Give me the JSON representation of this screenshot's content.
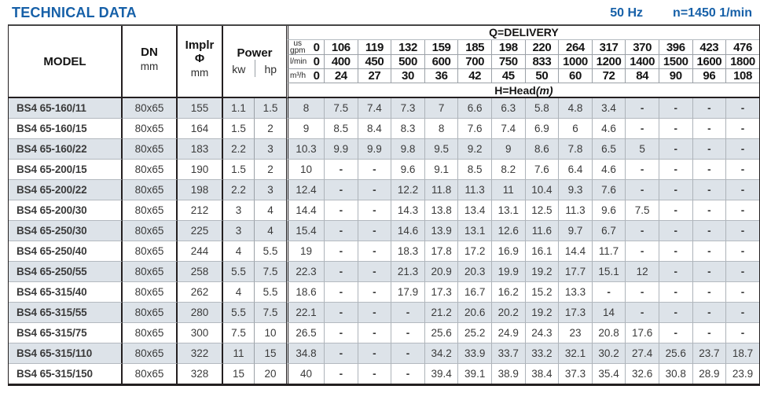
{
  "header": {
    "title": "TECHNICAL DATA",
    "frequency": "50 Hz",
    "speed": "n=1450 1/min"
  },
  "table": {
    "columns": {
      "model": "MODEL",
      "dn": "DN",
      "dn_unit": "mm",
      "implr_line1": "Implr",
      "implr_line2": "Φ",
      "implr_unit": "mm",
      "power": "Power",
      "kw": "kw",
      "hp": "hp"
    },
    "delivery_title": "Q=DELIVERY",
    "head_title": "H=Head",
    "head_unit": "(m)",
    "flow_rows": [
      {
        "unit_lines": [
          "us",
          "gpm"
        ],
        "values": [
          "0",
          "106",
          "119",
          "132",
          "159",
          "185",
          "198",
          "220",
          "264",
          "317",
          "370",
          "396",
          "423",
          "476"
        ]
      },
      {
        "unit_lines": [
          "l/min"
        ],
        "values": [
          "0",
          "400",
          "450",
          "500",
          "600",
          "700",
          "750",
          "833",
          "1000",
          "1200",
          "1400",
          "1500",
          "1600",
          "1800"
        ]
      },
      {
        "unit_lines": [
          "m³/h"
        ],
        "values": [
          "0",
          "24",
          "27",
          "30",
          "36",
          "42",
          "45",
          "50",
          "60",
          "72",
          "84",
          "90",
          "96",
          "108"
        ]
      }
    ],
    "rows": [
      {
        "model": "BS4 65-160/11",
        "dn": "80x65",
        "implr": "155",
        "kw": "1.1",
        "hp": "1.5",
        "head": [
          "8",
          "7.5",
          "7.4",
          "7.3",
          "7",
          "6.6",
          "6.3",
          "5.8",
          "4.8",
          "3.4",
          "-",
          "-",
          "-",
          "-"
        ]
      },
      {
        "model": "BS4 65-160/15",
        "dn": "80x65",
        "implr": "164",
        "kw": "1.5",
        "hp": "2",
        "head": [
          "9",
          "8.5",
          "8.4",
          "8.3",
          "8",
          "7.6",
          "7.4",
          "6.9",
          "6",
          "4.6",
          "-",
          "-",
          "-",
          "-"
        ]
      },
      {
        "model": "BS4 65-160/22",
        "dn": "80x65",
        "implr": "183",
        "kw": "2.2",
        "hp": "3",
        "head": [
          "10.3",
          "9.9",
          "9.9",
          "9.8",
          "9.5",
          "9.2",
          "9",
          "8.6",
          "7.8",
          "6.5",
          "5",
          "-",
          "-",
          "-"
        ]
      },
      {
        "model": "BS4 65-200/15",
        "dn": "80x65",
        "implr": "190",
        "kw": "1.5",
        "hp": "2",
        "head": [
          "10",
          "-",
          "-",
          "9.6",
          "9.1",
          "8.5",
          "8.2",
          "7.6",
          "6.4",
          "4.6",
          "-",
          "-",
          "-",
          "-"
        ]
      },
      {
        "model": "BS4 65-200/22",
        "dn": "80x65",
        "implr": "198",
        "kw": "2.2",
        "hp": "3",
        "head": [
          "12.4",
          "-",
          "-",
          "12.2",
          "11.8",
          "11.3",
          "11",
          "10.4",
          "9.3",
          "7.6",
          "-",
          "-",
          "-",
          "-"
        ]
      },
      {
        "model": "BS4 65-200/30",
        "dn": "80x65",
        "implr": "212",
        "kw": "3",
        "hp": "4",
        "head": [
          "14.4",
          "-",
          "-",
          "14.3",
          "13.8",
          "13.4",
          "13.1",
          "12.5",
          "11.3",
          "9.6",
          "7.5",
          "-",
          "-",
          "-"
        ]
      },
      {
        "model": "BS4 65-250/30",
        "dn": "80x65",
        "implr": "225",
        "kw": "3",
        "hp": "4",
        "head": [
          "15.4",
          "-",
          "-",
          "14.6",
          "13.9",
          "13.1",
          "12.6",
          "11.6",
          "9.7",
          "6.7",
          "-",
          "-",
          "-",
          "-"
        ]
      },
      {
        "model": "BS4 65-250/40",
        "dn": "80x65",
        "implr": "244",
        "kw": "4",
        "hp": "5.5",
        "head": [
          "19",
          "-",
          "-",
          "18.3",
          "17.8",
          "17.2",
          "16.9",
          "16.1",
          "14.4",
          "11.7",
          "-",
          "-",
          "-",
          "-"
        ]
      },
      {
        "model": "BS4 65-250/55",
        "dn": "80x65",
        "implr": "258",
        "kw": "5.5",
        "hp": "7.5",
        "head": [
          "22.3",
          "-",
          "-",
          "21.3",
          "20.9",
          "20.3",
          "19.9",
          "19.2",
          "17.7",
          "15.1",
          "12",
          "-",
          "-",
          "-"
        ]
      },
      {
        "model": "BS4 65-315/40",
        "dn": "80x65",
        "implr": "262",
        "kw": "4",
        "hp": "5.5",
        "head": [
          "18.6",
          "-",
          "-",
          "17.9",
          "17.3",
          "16.7",
          "16.2",
          "15.2",
          "13.3",
          "-",
          "-",
          "-",
          "-",
          "-"
        ]
      },
      {
        "model": "BS4 65-315/55",
        "dn": "80x65",
        "implr": "280",
        "kw": "5.5",
        "hp": "7.5",
        "head": [
          "22.1",
          "-",
          "-",
          "-",
          "21.2",
          "20.6",
          "20.2",
          "19.2",
          "17.3",
          "14",
          "-",
          "-",
          "-",
          "-"
        ]
      },
      {
        "model": "BS4 65-315/75",
        "dn": "80x65",
        "implr": "300",
        "kw": "7.5",
        "hp": "10",
        "head": [
          "26.5",
          "-",
          "-",
          "-",
          "25.6",
          "25.2",
          "24.9",
          "24.3",
          "23",
          "20.8",
          "17.6",
          "-",
          "-",
          "-"
        ]
      },
      {
        "model": "BS4 65-315/110",
        "dn": "80x65",
        "implr": "322",
        "kw": "11",
        "hp": "15",
        "head": [
          "34.8",
          "-",
          "-",
          "-",
          "34.2",
          "33.9",
          "33.7",
          "33.2",
          "32.1",
          "30.2",
          "27.4",
          "25.6",
          "23.7",
          "18.7"
        ]
      },
      {
        "model": "BS4 65-315/150",
        "dn": "80x65",
        "implr": "328",
        "kw": "15",
        "hp": "20",
        "head": [
          "40",
          "-",
          "-",
          "-",
          "39.4",
          "39.1",
          "38.9",
          "38.4",
          "37.3",
          "35.4",
          "32.6",
          "30.8",
          "28.9",
          "23.9"
        ]
      }
    ]
  }
}
